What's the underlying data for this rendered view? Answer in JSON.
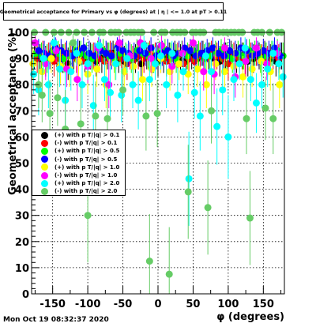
{
  "title": "Geometrical acceptance for Primary vs φ (degrees) at | η | <= 1.0 at pT > 0.11",
  "timestamp": "Mon Oct 19 08:32:37 2020",
  "chart_data": {
    "type": "scatter",
    "xlabel": "φ (degrees)",
    "ylabel": "Geometrical acceptance (%)",
    "xlim": [
      -180,
      180
    ],
    "ylim": [
      0,
      100
    ],
    "xticks": [
      -150,
      -100,
      -50,
      0,
      50,
      100,
      150
    ],
    "yticks": [
      0,
      10,
      20,
      30,
      40,
      50,
      60,
      70,
      80,
      90,
      100
    ],
    "grid": true,
    "legend_position": "center-left",
    "series": [
      {
        "name": "(+) with p T/|q| > 0.1",
        "color": "#000000",
        "x": [
          -176,
          -168,
          -160,
          -152,
          -144,
          -136,
          -128,
          -120,
          -112,
          -104,
          -96,
          -88,
          -80,
          -72,
          -64,
          -56,
          -48,
          -40,
          -32,
          -24,
          -16,
          -8,
          0,
          8,
          16,
          24,
          32,
          40,
          48,
          56,
          64,
          72,
          80,
          88,
          96,
          104,
          112,
          120,
          128,
          136,
          144,
          152,
          160,
          168,
          176
        ],
        "y": [
          91,
          90,
          89,
          92,
          91,
          90,
          88,
          91,
          92,
          90,
          91,
          89,
          90,
          91,
          92,
          90,
          89,
          91,
          90,
          88,
          91,
          90,
          89,
          90,
          91,
          92,
          90,
          89,
          91,
          90,
          92,
          91,
          90,
          89,
          91,
          92,
          90,
          91,
          89,
          90,
          91,
          92,
          90,
          89,
          91
        ]
      },
      {
        "name": "(-) with p T/|q| > 0.1",
        "color": "#ff0000",
        "x": [
          -172,
          -164,
          -156,
          -148,
          -140,
          -132,
          -124,
          -116,
          -108,
          -100,
          -92,
          -84,
          -76,
          -68,
          -60,
          -52,
          -44,
          -36,
          -28,
          -20,
          -12,
          -4,
          4,
          12,
          20,
          28,
          36,
          44,
          52,
          60,
          68,
          76,
          84,
          92,
          100,
          108,
          116,
          124,
          132,
          140,
          148,
          156,
          164,
          172
        ],
        "y": [
          90,
          92,
          91,
          89,
          90,
          91,
          92,
          90,
          89,
          88,
          91,
          90,
          89,
          92,
          91,
          90,
          88,
          89,
          91,
          90,
          92,
          91,
          90,
          89,
          90,
          91,
          88,
          90,
          89,
          91,
          90,
          92,
          91,
          90,
          88,
          91,
          90,
          89,
          91,
          92,
          90,
          89,
          91,
          90
        ]
      },
      {
        "name": "(+) with p T/|q| > 0.5",
        "color": "#00ff00",
        "x": [
          -174,
          -166,
          -158,
          -150,
          -142,
          -134,
          -126,
          -118,
          -110,
          -102,
          -94,
          -86,
          -78,
          -70,
          -62,
          -54,
          -46,
          -38,
          -30,
          -22,
          -14,
          -6,
          2,
          10,
          18,
          26,
          34,
          42,
          50,
          58,
          66,
          74,
          82,
          90,
          98,
          106,
          114,
          122,
          130,
          138,
          146,
          154,
          162,
          170,
          178
        ],
        "y": [
          92,
          91,
          90,
          93,
          92,
          90,
          91,
          93,
          92,
          91,
          90,
          92,
          93,
          91,
          90,
          92,
          91,
          90,
          93,
          92,
          91,
          90,
          92,
          93,
          91,
          90,
          92,
          91,
          93,
          92,
          90,
          91,
          92,
          93,
          91,
          90,
          92,
          91,
          93,
          92,
          90,
          91,
          92,
          93,
          91
        ]
      },
      {
        "name": "(-) with p T/|q| > 0.5",
        "color": "#0000ff",
        "x": [
          -170,
          -162,
          -154,
          -146,
          -138,
          -130,
          -122,
          -114,
          -106,
          -98,
          -90,
          -82,
          -74,
          -66,
          -58,
          -50,
          -42,
          -34,
          -26,
          -18,
          -10,
          -2,
          6,
          14,
          22,
          30,
          38,
          46,
          54,
          62,
          70,
          78,
          86,
          94,
          102,
          110,
          118,
          126,
          134,
          142,
          150,
          158,
          166,
          174
        ],
        "y": [
          93,
          92,
          91,
          94,
          93,
          92,
          91,
          93,
          94,
          92,
          91,
          93,
          92,
          91,
          94,
          93,
          92,
          91,
          93,
          92,
          94,
          91,
          92,
          93,
          91,
          92,
          94,
          93,
          91,
          92,
          93,
          94,
          92,
          91,
          93,
          92,
          94,
          93,
          91,
          92,
          93,
          92,
          94,
          91
        ]
      },
      {
        "name": "(+) with p T/|q| > 1.0",
        "color": "#ffff00",
        "x": [
          -178,
          -165,
          -152,
          -139,
          -126,
          -113,
          -100,
          -87,
          -74,
          -61,
          -48,
          -35,
          -22,
          -9,
          4,
          17,
          30,
          43,
          56,
          69,
          82,
          95,
          108,
          121,
          134,
          147,
          160,
          173
        ],
        "y": [
          88,
          85,
          90,
          87,
          86,
          89,
          84,
          86,
          80,
          88,
          85,
          87,
          82,
          86,
          90,
          85,
          88,
          84,
          86,
          80,
          88,
          85,
          87,
          83,
          86,
          89,
          85,
          80
        ]
      },
      {
        "name": "(-) with p T/|q| > 1.0",
        "color": "#ff00ff",
        "x": [
          -175,
          -160,
          -145,
          -130,
          -115,
          -100,
          -85,
          -70,
          -55,
          -40,
          -25,
          -10,
          5,
          20,
          35,
          50,
          65,
          80,
          95,
          110,
          125,
          140,
          155,
          170
        ],
        "y": [
          96,
          88,
          93,
          86,
          82,
          87,
          94,
          80,
          96,
          91,
          96,
          90,
          95,
          87,
          92,
          96,
          85,
          84,
          94,
          83,
          89,
          94,
          88,
          92
        ]
      },
      {
        "name": "(+) with p T/|q| > 2.0",
        "color": "#00ffff",
        "x": [
          -177,
          -170,
          -163,
          -156,
          -148,
          -140,
          -132,
          -124,
          -116,
          -108,
          -100,
          -92,
          -84,
          -76,
          -68,
          -60,
          -52,
          -44,
          -36,
          -28,
          -20,
          -12,
          -4,
          4,
          12,
          20,
          28,
          36,
          44,
          52,
          60,
          68,
          76,
          84,
          92,
          100,
          108,
          116,
          124,
          132,
          140,
          148,
          156,
          164,
          172,
          178
        ],
        "y": [
          84,
          78,
          90,
          80,
          96,
          86,
          74,
          85,
          92,
          80,
          88,
          72,
          95,
          82,
          77,
          88,
          76,
          90,
          80,
          74,
          95,
          82,
          88,
          91,
          80,
          92,
          76,
          85,
          44,
          77,
          68,
          91,
          85,
          64,
          78,
          60,
          82,
          88,
          94,
          82,
          73,
          80,
          86,
          92,
          88,
          83
        ]
      },
      {
        "name": "(-) with p T/|q| > 2.0",
        "color": "#66cc66",
        "x": [
          -176,
          -170,
          -165,
          -160,
          -154,
          -148,
          -143,
          -138,
          -132,
          -127,
          -121,
          -116,
          -110,
          -105,
          -100,
          -94,
          -89,
          -83,
          -78,
          -72,
          -67,
          -61,
          -56,
          -50,
          -45,
          -39,
          -34,
          -28,
          -23,
          -17,
          -12,
          -6,
          -1,
          5,
          10,
          16,
          21,
          27,
          32,
          38,
          43,
          49,
          54,
          60,
          65,
          71,
          76,
          82,
          87,
          93,
          98,
          104,
          109,
          115,
          120,
          126,
          131,
          137,
          142,
          148,
          153,
          159,
          164,
          170,
          176
        ],
        "y": [
          100,
          80,
          76,
          100,
          69,
          100,
          75,
          100,
          63,
          100,
          96,
          100,
          65,
          100,
          30,
          100,
          68,
          100,
          100,
          67,
          100,
          100,
          100,
          78,
          100,
          100,
          100,
          100,
          100,
          68,
          12.5,
          100,
          69,
          100,
          100,
          7.5,
          100,
          100,
          100,
          100,
          39,
          100,
          100,
          100,
          100,
          33,
          70,
          100,
          100,
          100,
          100,
          100,
          100,
          100,
          100,
          67,
          29,
          100,
          100,
          100,
          71,
          100,
          67,
          100,
          100
        ]
      }
    ]
  }
}
